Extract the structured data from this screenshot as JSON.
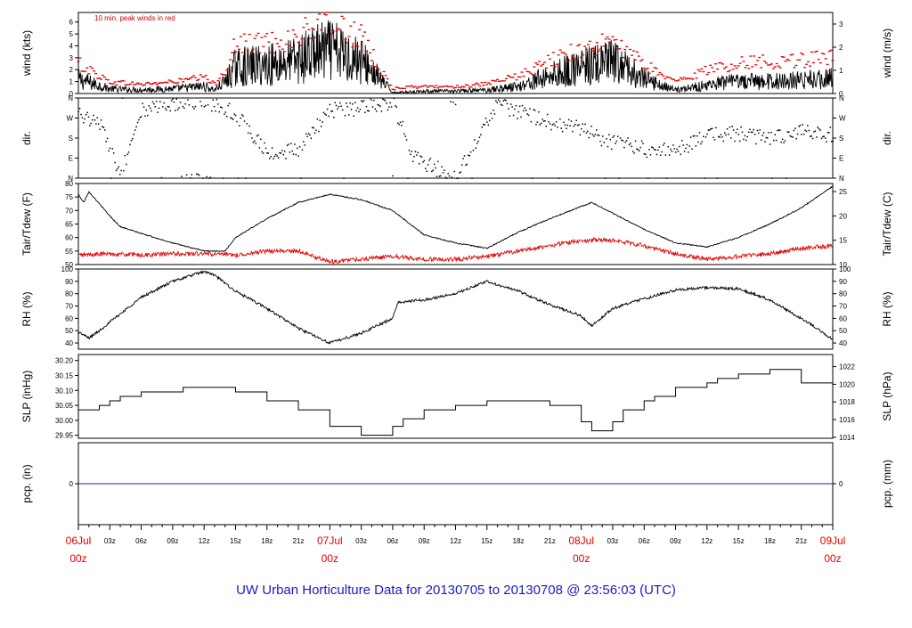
{
  "chart_data": {
    "type": "line",
    "title": "UW Urban Horticulture Data for 20130705  to  20130708 @ 23:56:03  (UTC)",
    "x_axis": {
      "start": "2013-07-06T00:00Z",
      "end": "2013-07-09T00:00Z",
      "hour_ticks": [
        "03z",
        "06z",
        "09z",
        "12z",
        "15z",
        "18z",
        "21z",
        "03z",
        "06z",
        "09z",
        "12z",
        "15z",
        "18z",
        "21z",
        "03z",
        "06z",
        "09z",
        "12z",
        "15z",
        "18z",
        "21z"
      ],
      "day_ticks": [
        {
          "day": "06Jul",
          "hour": "00z"
        },
        {
          "day": "07Jul",
          "hour": "00z"
        },
        {
          "day": "08Jul",
          "hour": "00z"
        },
        {
          "day": "09Jul",
          "hour": "00z"
        }
      ]
    },
    "panels": [
      {
        "id": "wind",
        "ylabel_left": "wind (kts)",
        "ylabel_right": "wind (m/s)",
        "ylim": [
          0,
          6.8
        ],
        "yticks_left": [
          "0",
          "1",
          "2",
          "3",
          "4",
          "5",
          "6"
        ],
        "yticks_right": [
          "0",
          "1",
          "2",
          "3"
        ],
        "annotation": "10 min. peak winds in red",
        "series": [
          {
            "role": "mean",
            "color": "#000000",
            "hours": [
              0,
              3,
              6,
              9,
              12,
              13,
              14,
              15,
              18,
              21,
              22,
              24,
              27,
              30,
              30.5,
              33,
              36,
              39,
              42,
              45,
              48,
              51,
              52,
              54,
              57,
              60,
              63,
              66,
              69,
              72
            ],
            "values": [
              1.2,
              0.4,
              0.3,
              0.4,
              0.6,
              0.3,
              1.0,
              2.2,
              2.4,
              2.8,
              3.2,
              3.6,
              2.8,
              0.1,
              0.1,
              0.2,
              0.2,
              0.3,
              0.6,
              1.5,
              2.2,
              2.6,
              2.2,
              1.2,
              0.3,
              0.7,
              1.0,
              1.0,
              1.1,
              1.3
            ]
          },
          {
            "role": "peak",
            "color": "#e60000",
            "hours": [
              0,
              3,
              6,
              9,
              12,
              13,
              14,
              15,
              18,
              21,
              22,
              24,
              27,
              30,
              30.5,
              33,
              36,
              39,
              42,
              45,
              48,
              51,
              52,
              54,
              57,
              60,
              63,
              66,
              69,
              72
            ],
            "values": [
              2.6,
              1.0,
              0.8,
              1.0,
              1.4,
              0.8,
              2.0,
              4.2,
              4.4,
              4.8,
              5.6,
              6.0,
              4.8,
              0.4,
              0.5,
              0.6,
              0.6,
              0.8,
              1.5,
              2.8,
              3.8,
              4.4,
              3.8,
              2.5,
              1.0,
              2.0,
              2.6,
              2.8,
              2.9,
              3.1
            ]
          }
        ]
      },
      {
        "id": "dir",
        "ylabel_left": "dir.",
        "ylabel_right": "dir.",
        "ylim": [
          0,
          360
        ],
        "yticks_left": [
          "N",
          "E",
          "S",
          "W",
          "N"
        ],
        "yticks_right": [
          "N",
          "E",
          "S",
          "W",
          "N"
        ],
        "series": [
          {
            "role": "direction",
            "color": "#000000",
            "style": "dots",
            "hours": [
              0,
              2,
              4,
              6,
              8,
              10,
              12,
              14,
              15,
              18,
              21,
              24,
              27,
              28,
              30,
              32,
              36,
              40,
              42,
              45,
              48,
              51,
              54,
              57,
              60,
              63,
              66,
              69,
              72
            ],
            "values": [
              290,
              255,
              5,
              300,
              330,
              340,
              350,
              315,
              290,
              110,
              130,
              305,
              315,
              330,
              340,
              95,
              0,
              330,
              300,
              250,
              220,
              160,
              130,
              120,
              195,
              200,
              175,
              210,
              195
            ]
          }
        ]
      },
      {
        "id": "temp",
        "ylabel_left": "Tair/Tdew (F)",
        "ylabel_right": "Tair/Tdew (C)",
        "ylim": [
          50,
          80
        ],
        "yticks_left": [
          "50",
          "55",
          "60",
          "65",
          "70",
          "75",
          "80"
        ],
        "yticks_right": [
          "10",
          "15",
          "20",
          "25"
        ],
        "series": [
          {
            "role": "air temperature",
            "color": "#000000",
            "hours": [
              0,
              0.5,
              1,
              3,
              4,
              6,
              9,
              12,
              14,
              15,
              18,
              21,
              24,
              27,
              30,
              33,
              36,
              39,
              42,
              45,
              48,
              49,
              51,
              54,
              57,
              60,
              63,
              66,
              69,
              72
            ],
            "values": [
              76,
              73,
              77,
              68,
              64,
              61.5,
              58,
              55,
              55,
              60,
              67,
              73,
              76,
              74,
              70,
              61,
              58,
              56,
              62,
              67,
              71.5,
              73,
              69,
              63,
              58,
              56.5,
              60,
              65,
              71,
              79
            ]
          },
          {
            "role": "dew point",
            "color": "#e60000",
            "hours": [
              0,
              3,
              6,
              9,
              12,
              15,
              18,
              21,
              24,
              27,
              30,
              33,
              36,
              39,
              42,
              45,
              48,
              51,
              54,
              57,
              60,
              63,
              66,
              69,
              72
            ],
            "values": [
              53.5,
              54,
              53.5,
              54,
              54,
              53.5,
              55,
              55,
              51,
              52,
              53,
              52,
              52,
              53,
              55,
              57,
              59,
              59,
              57,
              54,
              52,
              53,
              54,
              56,
              57
            ]
          }
        ]
      },
      {
        "id": "rh",
        "ylabel_left": "RH (%)",
        "ylabel_right": "RH (%)",
        "ylim": [
          35,
          100
        ],
        "yticks_left": [
          "40",
          "50",
          "60",
          "70",
          "80",
          "90",
          "100"
        ],
        "yticks_right": [
          "40",
          "50",
          "60",
          "70",
          "80",
          "90",
          "100"
        ],
        "series": [
          {
            "role": "relative humidity",
            "color": "#000000",
            "hours": [
              0,
              1,
              2,
              3,
              6,
              9,
              12,
              13,
              15,
              18,
              21,
              24,
              27,
              30,
              30.5,
              33,
              36,
              39,
              42,
              45,
              48,
              49,
              51,
              54,
              57,
              60,
              63,
              66,
              69,
              72
            ],
            "values": [
              49,
              44,
              50,
              57,
              77,
              90,
              98,
              95,
              82,
              68,
              52,
              40,
              48,
              60,
              73,
              75,
              80,
              90,
              82,
              71,
              62,
              54,
              68,
              76,
              83,
              85,
              84,
              75,
              60,
              43
            ]
          }
        ]
      },
      {
        "id": "slp",
        "ylabel_left": "SLP (inHg)",
        "ylabel_right": "SLP (hPa)",
        "ylim": [
          29.94,
          30.22
        ],
        "yticks_left": [
          "29.95",
          "30.00",
          "30.05",
          "30.10",
          "30.15",
          "30.20"
        ],
        "yticks_right": [
          "1014",
          "1016",
          "1018",
          "1020",
          "1022"
        ],
        "series": [
          {
            "role": "sea level pressure",
            "color": "#000000",
            "style": "step",
            "hours": [
              0,
              1,
              2,
              3,
              4,
              6,
              9,
              10,
              11,
              12,
              15,
              18,
              21,
              24,
              27,
              30,
              31,
              33,
              36,
              39,
              42,
              45,
              48,
              49,
              50,
              51,
              52,
              54,
              55,
              57,
              60,
              61,
              63,
              66,
              69,
              72
            ],
            "values": [
              30.035,
              30.035,
              30.05,
              30.065,
              30.08,
              30.095,
              30.095,
              30.11,
              30.11,
              30.11,
              30.095,
              30.065,
              30.035,
              29.98,
              29.95,
              29.98,
              30.005,
              30.035,
              30.05,
              30.065,
              30.065,
              30.05,
              29.995,
              29.965,
              29.965,
              29.995,
              30.035,
              30.065,
              30.08,
              30.11,
              30.125,
              30.14,
              30.155,
              30.17,
              30.125,
              30.11
            ]
          }
        ]
      },
      {
        "id": "pcp",
        "ylabel_left": "pcp. (in)",
        "ylabel_right": "pcp. (mm)",
        "ylim": [
          -1,
          1
        ],
        "yticks_left": [
          "0"
        ],
        "yticks_right": [
          "0"
        ],
        "series": [
          {
            "role": "precipitation",
            "color": "#1a1acc",
            "hours": [
              0,
              72
            ],
            "values": [
              0,
              0
            ]
          }
        ]
      }
    ]
  }
}
